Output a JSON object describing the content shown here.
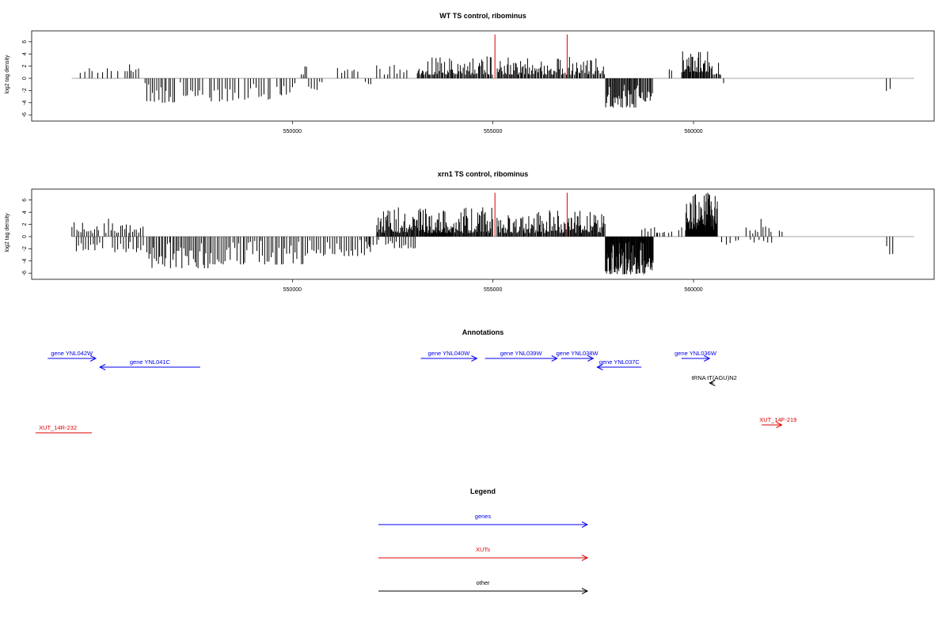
{
  "chart_data": [
    {
      "type": "bar",
      "title": "WT TS control, ribominus",
      "ylabel": "log2 tag density",
      "xlim": [
        543500,
        566000
      ],
      "ylim": [
        -6,
        7
      ],
      "xticks": [
        550000,
        555000,
        560000
      ],
      "yticks": [
        6,
        4,
        2,
        0,
        -2,
        -4,
        -6
      ],
      "grid": false,
      "baseline": {
        "x": [
          544500,
          565500
        ],
        "y": 0
      },
      "highlight_color": "#dd0000",
      "highlight_lines": [
        {
          "x": 555050,
          "y": 7.2
        },
        {
          "x": 556850,
          "y": 7.2
        }
      ],
      "segments": [
        {
          "x0": 544650,
          "x1": 545700,
          "n": 9,
          "min": 0.8,
          "max": 2.4
        },
        {
          "x0": 545800,
          "x1": 546200,
          "n": 7,
          "min": 1.0,
          "max": 2.6
        },
        {
          "x0": 546300,
          "x1": 547100,
          "n": 16,
          "min": -4.0,
          "max": -0.5
        },
        {
          "x0": 547200,
          "x1": 547800,
          "n": 10,
          "min": -3.0,
          "max": -0.6
        },
        {
          "x0": 547900,
          "x1": 548700,
          "n": 12,
          "min": -3.8,
          "max": -0.6
        },
        {
          "x0": 548800,
          "x1": 549500,
          "n": 10,
          "min": -3.5,
          "max": -0.5
        },
        {
          "x0": 549600,
          "x1": 550100,
          "n": 8,
          "min": -2.8,
          "max": -0.5
        },
        {
          "x0": 550200,
          "x1": 550400,
          "n": 4,
          "min": 0.6,
          "max": 2.0
        },
        {
          "x0": 550400,
          "x1": 550800,
          "n": 6,
          "min": -2.0,
          "max": -0.5
        },
        {
          "x0": 551100,
          "x1": 551700,
          "n": 7,
          "min": 0.8,
          "max": 2.0
        },
        {
          "x0": 551800,
          "x1": 552000,
          "n": 3,
          "min": -1.0,
          "max": -0.4
        },
        {
          "x0": 552100,
          "x1": 552900,
          "n": 10,
          "min": 0.6,
          "max": 2.2
        },
        {
          "x0": 553100,
          "x1": 554200,
          "n": 42,
          "min": 0.6,
          "max": 3.5
        },
        {
          "x0": 554200,
          "x1": 555000,
          "n": 30,
          "min": 0.6,
          "max": 3.8
        },
        {
          "x0": 555100,
          "x1": 555900,
          "n": 32,
          "min": 0.6,
          "max": 3.5
        },
        {
          "x0": 555900,
          "x1": 556700,
          "n": 30,
          "min": 0.6,
          "max": 3.6
        },
        {
          "x0": 556700,
          "x1": 557800,
          "n": 38,
          "min": 0.6,
          "max": 3.6
        },
        {
          "x0": 557800,
          "x1": 558600,
          "n": 34,
          "min": -4.8,
          "max": -0.8
        },
        {
          "x0": 558600,
          "x1": 559000,
          "n": 14,
          "min": -3.8,
          "max": -0.8
        },
        {
          "x0": 559350,
          "x1": 559550,
          "n": 2,
          "min": 1.0,
          "max": 1.5
        },
        {
          "x0": 559700,
          "x1": 560400,
          "n": 36,
          "min": 1.0,
          "max": 4.8
        },
        {
          "x0": 560400,
          "x1": 560700,
          "n": 10,
          "min": 0.6,
          "max": 3.0
        },
        {
          "x0": 560700,
          "x1": 560800,
          "n": 1,
          "min": -0.8,
          "max": -0.8
        },
        {
          "x0": 564800,
          "x1": 565000,
          "n": 2,
          "min": -2.8,
          "max": -1.0
        }
      ]
    },
    {
      "type": "bar",
      "title": "xrn1 TS control, ribominus",
      "ylabel": "log2 tag density",
      "xlim": [
        543500,
        566000
      ],
      "ylim": [
        -6,
        7
      ],
      "xticks": [
        550000,
        555000,
        560000
      ],
      "yticks": [
        6,
        4,
        2,
        0,
        -2,
        -4,
        -6
      ],
      "grid": false,
      "baseline": {
        "x": [
          544500,
          565500
        ],
        "y": 0
      },
      "highlight_color": "#dd0000",
      "highlight_lines": [
        {
          "x": 555050,
          "y": 7.2
        },
        {
          "x": 556850,
          "y": 7.2
        }
      ],
      "segments": [
        {
          "x0": 544500,
          "x1": 545200,
          "n": 14,
          "min": 0.6,
          "max": 2.4
        },
        {
          "x0": 544600,
          "x1": 545300,
          "n": 12,
          "min": -2.4,
          "max": -0.6
        },
        {
          "x0": 545300,
          "x1": 546300,
          "n": 20,
          "min": 0.6,
          "max": 3.4
        },
        {
          "x0": 545500,
          "x1": 546400,
          "n": 14,
          "min": -2.6,
          "max": -0.6
        },
        {
          "x0": 546400,
          "x1": 548000,
          "n": 40,
          "min": -5.2,
          "max": -0.6
        },
        {
          "x0": 548000,
          "x1": 550300,
          "n": 46,
          "min": -4.6,
          "max": -0.5
        },
        {
          "x0": 550300,
          "x1": 552000,
          "n": 30,
          "min": -3.2,
          "max": -0.5
        },
        {
          "x0": 551800,
          "x1": 552200,
          "n": 6,
          "min": -1.4,
          "max": -0.3
        },
        {
          "x0": 552100,
          "x1": 553200,
          "n": 55,
          "min": 0.6,
          "max": 4.8
        },
        {
          "x0": 552300,
          "x1": 553100,
          "n": 14,
          "min": -2.0,
          "max": -0.5
        },
        {
          "x0": 553200,
          "x1": 554000,
          "n": 55,
          "min": 0.6,
          "max": 4.6
        },
        {
          "x0": 554000,
          "x1": 555000,
          "n": 50,
          "min": 0.6,
          "max": 4.8
        },
        {
          "x0": 555100,
          "x1": 556000,
          "n": 40,
          "min": 0.6,
          "max": 3.6
        },
        {
          "x0": 556000,
          "x1": 556800,
          "n": 36,
          "min": 0.6,
          "max": 4.6
        },
        {
          "x0": 556800,
          "x1": 557800,
          "n": 50,
          "min": 0.6,
          "max": 4.4
        },
        {
          "x0": 557800,
          "x1": 559000,
          "n": 90,
          "min": -6.2,
          "max": -0.8
        },
        {
          "x0": 558700,
          "x1": 559300,
          "n": 8,
          "min": 0.6,
          "max": 1.8
        },
        {
          "x0": 559100,
          "x1": 559800,
          "n": 6,
          "min": 0.6,
          "max": 1.6
        },
        {
          "x0": 559800,
          "x1": 560600,
          "n": 100,
          "min": 1.0,
          "max": 7.2
        },
        {
          "x0": 560700,
          "x1": 561200,
          "n": 5,
          "min": -1.4,
          "max": -0.4
        },
        {
          "x0": 561300,
          "x1": 562000,
          "n": 10,
          "min": 0.5,
          "max": 3.4
        },
        {
          "x0": 561400,
          "x1": 562000,
          "n": 6,
          "min": -1.0,
          "max": -0.3
        },
        {
          "x0": 562100,
          "x1": 562300,
          "n": 2,
          "min": 0.6,
          "max": 1.2
        },
        {
          "x0": 564800,
          "x1": 565000,
          "n": 3,
          "min": -3.0,
          "max": -1.2
        }
      ]
    }
  ],
  "annotations": {
    "title": "Annotations",
    "xlim": [
      543500,
      566000
    ],
    "features": [
      {
        "label": "gene YNL042W",
        "x0": 543900,
        "x1": 545100,
        "dir": "right",
        "color": "#0000ee",
        "row": 0
      },
      {
        "label": "gene YNL041C",
        "x0": 545200,
        "x1": 547700,
        "dir": "left",
        "color": "#0000ee",
        "row": 1
      },
      {
        "label": "gene YNL040W",
        "x0": 553200,
        "x1": 554600,
        "dir": "right",
        "color": "#0000ee",
        "row": 0
      },
      {
        "label": "gene YNL039W",
        "x0": 554800,
        "x1": 556600,
        "dir": "right",
        "color": "#0000ee",
        "row": 0
      },
      {
        "label": "gene YNL038W",
        "x0": 556700,
        "x1": 557500,
        "dir": "right",
        "color": "#0000ee",
        "row": 0
      },
      {
        "label": "gene YNL037C",
        "x0": 557600,
        "x1": 558700,
        "dir": "left",
        "color": "#0000ee",
        "row": 1
      },
      {
        "label": "gene YNL036W",
        "x0": 559700,
        "x1": 560400,
        "dir": "right",
        "color": "#0000ee",
        "row": 0
      },
      {
        "label": "tRNA tT(AGU)N2",
        "x0": 560400,
        "x1": 560500,
        "dir": "left",
        "color": "#000000",
        "row": 2
      },
      {
        "label": "XUT_14R-232",
        "x0": 543600,
        "x1": 545000,
        "dir": "none",
        "color": "#dd0000",
        "row": 3
      },
      {
        "label": "XUT_14F-219",
        "x0": 561700,
        "x1": 562200,
        "dir": "right",
        "color": "#dd0000",
        "row": 4
      }
    ]
  },
  "legend": {
    "title": "Legend",
    "items": [
      {
        "label": "genes",
        "color": "#0000ee"
      },
      {
        "label": "XUTs",
        "color": "#dd0000"
      },
      {
        "label": "other",
        "color": "#000000"
      }
    ]
  }
}
